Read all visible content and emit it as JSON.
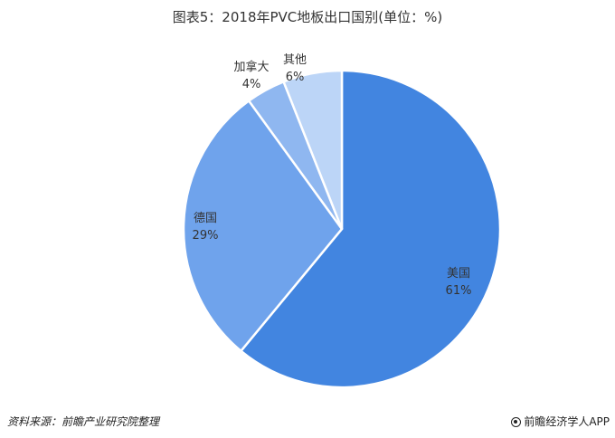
{
  "chart_data": {
    "type": "pie",
    "title": "图表5：2018年PVC地板出口国别(单位：%)",
    "slices": [
      {
        "label": "美国",
        "value": 61,
        "value_label": "61%",
        "color": "#4285e0"
      },
      {
        "label": "德国",
        "value": 29,
        "value_label": "29%",
        "color": "#6fa3ec"
      },
      {
        "label": "加拿大",
        "value": 4,
        "value_label": "4%",
        "color": "#8fb7f0"
      },
      {
        "label": "其他",
        "value": 6,
        "value_label": "6%",
        "color": "#bcd5f7"
      }
    ],
    "legend": "none",
    "start": "top",
    "direction": "clockwise"
  },
  "footer": {
    "source": "资料来源：前瞻产业研究院整理",
    "brand": "前瞻经济学人APP",
    "brand_icon": "qianzhan-logo-icon"
  }
}
